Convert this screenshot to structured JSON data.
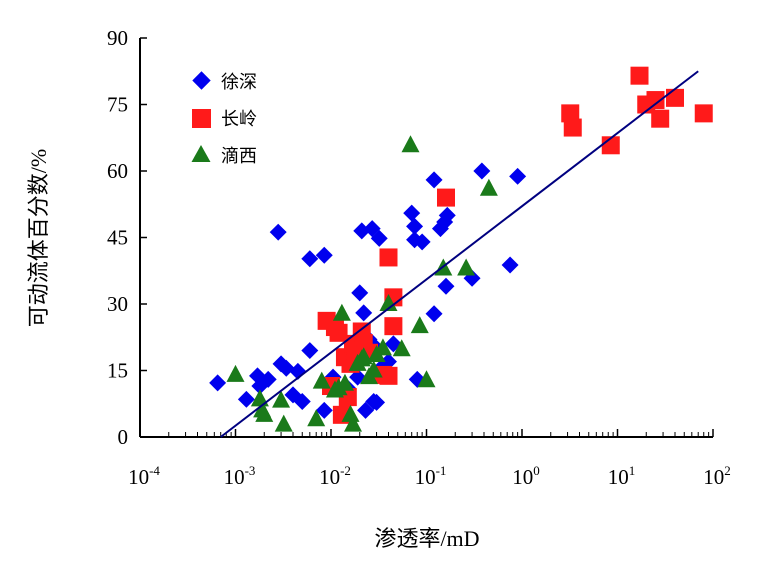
{
  "chart_data": {
    "type": "scatter",
    "title": "",
    "xlabel": "渗透率/mD",
    "ylabel": "可动流体百分数/%",
    "xscale": "log",
    "xlim": [
      0.0001,
      100
    ],
    "ylim": [
      0,
      90
    ],
    "x_tick_values": [
      0.0001,
      0.001,
      0.01,
      0.1,
      1,
      10,
      100
    ],
    "x_tick_labels": [
      {
        "base": "10",
        "exp": "-4"
      },
      {
        "base": "10",
        "exp": "-3"
      },
      {
        "base": "10",
        "exp": "-2"
      },
      {
        "base": "10",
        "exp": "-1"
      },
      {
        "base": "10",
        "exp": "0"
      },
      {
        "base": "10",
        "exp": "1"
      },
      {
        "base": "10",
        "exp": "2"
      }
    ],
    "y_ticks": [
      "0",
      "15",
      "30",
      "45",
      "60",
      "75",
      "90"
    ],
    "grid": false,
    "legend_position": "top-left",
    "colors": {
      "xushen": "#0000ee",
      "changling": "#ff1a1a",
      "dixi": "#1a7a1a",
      "trend": "#000080",
      "axis": "#000000"
    },
    "series": [
      {
        "name": "徐深",
        "marker": "diamond",
        "color": "#0000ee",
        "points": [
          [
            0.00065,
            12.2
          ],
          [
            0.0013,
            8.5
          ],
          [
            0.0017,
            13.8
          ],
          [
            0.0018,
            11.5
          ],
          [
            0.0022,
            13.0
          ],
          [
            0.0028,
            46.2
          ],
          [
            0.003,
            16.5
          ],
          [
            0.0034,
            15.5
          ],
          [
            0.004,
            9.5
          ],
          [
            0.0045,
            14.8
          ],
          [
            0.005,
            8.0
          ],
          [
            0.006,
            40.2
          ],
          [
            0.006,
            19.5
          ],
          [
            0.0085,
            41.0
          ],
          [
            0.0085,
            6.0
          ],
          [
            0.0105,
            13.5
          ],
          [
            0.012,
            24.8
          ],
          [
            0.015,
            11.0
          ],
          [
            0.019,
            13.5
          ],
          [
            0.02,
            32.5
          ],
          [
            0.021,
            46.5
          ],
          [
            0.022,
            28.0
          ],
          [
            0.023,
            6.0
          ],
          [
            0.025,
            22.0
          ],
          [
            0.027,
            47.0
          ],
          [
            0.028,
            8.0
          ],
          [
            0.03,
            20.0
          ],
          [
            0.03,
            7.8
          ],
          [
            0.032,
            44.8
          ],
          [
            0.035,
            16.0
          ],
          [
            0.04,
            17.0
          ],
          [
            0.045,
            21.0
          ],
          [
            0.07,
            50.5
          ],
          [
            0.075,
            44.5
          ],
          [
            0.075,
            47.5
          ],
          [
            0.08,
            13.0
          ],
          [
            0.09,
            44.0
          ],
          [
            0.12,
            58.0
          ],
          [
            0.12,
            27.8
          ],
          [
            0.14,
            47.0
          ],
          [
            0.155,
            48.5
          ],
          [
            0.16,
            34.0
          ],
          [
            0.165,
            50.0
          ],
          [
            0.3,
            35.8
          ],
          [
            0.38,
            60.0
          ],
          [
            0.75,
            38.8
          ],
          [
            0.9,
            58.8
          ]
        ]
      },
      {
        "name": "长岭",
        "marker": "square",
        "color": "#ff1a1a",
        "points": [
          [
            0.009,
            26.2
          ],
          [
            0.01,
            11.5
          ],
          [
            0.011,
            24.8
          ],
          [
            0.012,
            23.5
          ],
          [
            0.013,
            5.0
          ],
          [
            0.014,
            18.0
          ],
          [
            0.015,
            9.0
          ],
          [
            0.016,
            16.5
          ],
          [
            0.017,
            21.0
          ],
          [
            0.018,
            19.5
          ],
          [
            0.021,
            23.8
          ],
          [
            0.022,
            21.2
          ],
          [
            0.025,
            19.0
          ],
          [
            0.035,
            14.0
          ],
          [
            0.04,
            13.8
          ],
          [
            0.04,
            40.5
          ],
          [
            0.045,
            31.5
          ],
          [
            0.045,
            25.0
          ],
          [
            0.16,
            54.0
          ],
          [
            3.2,
            73.0
          ],
          [
            3.4,
            69.8
          ],
          [
            8.5,
            65.8
          ],
          [
            17.0,
            81.5
          ],
          [
            20.0,
            75.0
          ],
          [
            25.0,
            76.0
          ],
          [
            28.0,
            71.8
          ],
          [
            40.0,
            76.5
          ],
          [
            80.0,
            73.0
          ]
        ]
      },
      {
        "name": "滴西",
        "marker": "triangle",
        "color": "#1a7a1a",
        "points": [
          [
            0.001,
            14.0
          ],
          [
            0.0018,
            8.5
          ],
          [
            0.0019,
            6.0
          ],
          [
            0.002,
            5.0
          ],
          [
            0.003,
            8.2
          ],
          [
            0.0032,
            2.8
          ],
          [
            0.007,
            4.0
          ],
          [
            0.008,
            12.5
          ],
          [
            0.011,
            10.5
          ],
          [
            0.012,
            11.0
          ],
          [
            0.013,
            27.8
          ],
          [
            0.014,
            12.0
          ],
          [
            0.016,
            5.0
          ],
          [
            0.017,
            2.8
          ],
          [
            0.019,
            16.5
          ],
          [
            0.021,
            17.5
          ],
          [
            0.022,
            18.0
          ],
          [
            0.025,
            13.5
          ],
          [
            0.028,
            15.0
          ],
          [
            0.03,
            18.5
          ],
          [
            0.035,
            20.0
          ],
          [
            0.04,
            30.0
          ],
          [
            0.055,
            19.8
          ],
          [
            0.068,
            65.8
          ],
          [
            0.085,
            25.0
          ],
          [
            0.1,
            12.8
          ],
          [
            0.15,
            38.0
          ],
          [
            0.26,
            38.0
          ],
          [
            0.45,
            56.0
          ]
        ]
      }
    ],
    "trendline": {
      "x": [
        0.0007,
        70
      ],
      "y": [
        0,
        82.5
      ]
    }
  }
}
